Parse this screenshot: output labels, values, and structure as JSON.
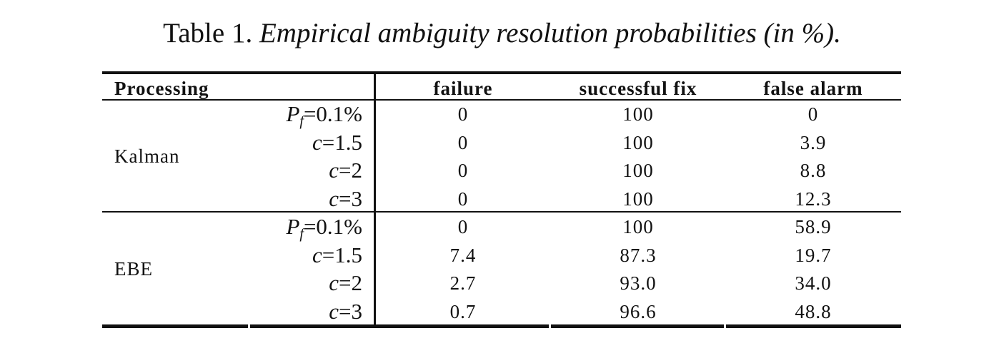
{
  "caption": {
    "label": "Table 1.",
    "text": "Empirical ambiguity resolution probabilities (in %)."
  },
  "table": {
    "headers": {
      "processing": "Processing",
      "failure": "failure",
      "successful_fix": "successful fix",
      "false_alarm": "false alarm"
    },
    "groups": [
      {
        "name": "Kalman",
        "rows": [
          {
            "sym": "P",
            "sub": "f",
            "rest": "=0.1%",
            "failure": "0",
            "successful_fix": "100",
            "false_alarm": "0"
          },
          {
            "sym": "c",
            "sub": "",
            "rest": "=1.5",
            "failure": "0",
            "successful_fix": "100",
            "false_alarm": "3.9"
          },
          {
            "sym": "c",
            "sub": "",
            "rest": "=2",
            "failure": "0",
            "successful_fix": "100",
            "false_alarm": "8.8"
          },
          {
            "sym": "c",
            "sub": "",
            "rest": "=3",
            "failure": "0",
            "successful_fix": "100",
            "false_alarm": "12.3"
          }
        ]
      },
      {
        "name": "EBE",
        "rows": [
          {
            "sym": "P",
            "sub": "f",
            "rest": "=0.1%",
            "failure": "0",
            "successful_fix": "100",
            "false_alarm": "58.9"
          },
          {
            "sym": "c",
            "sub": "",
            "rest": "=1.5",
            "failure": "7.4",
            "successful_fix": "87.3",
            "false_alarm": "19.7"
          },
          {
            "sym": "c",
            "sub": "",
            "rest": "=2",
            "failure": "2.7",
            "successful_fix": "93.0",
            "false_alarm": "34.0"
          },
          {
            "sym": "c",
            "sub": "",
            "rest": "=3",
            "failure": "0.7",
            "successful_fix": "96.6",
            "false_alarm": "48.8"
          }
        ]
      }
    ]
  }
}
